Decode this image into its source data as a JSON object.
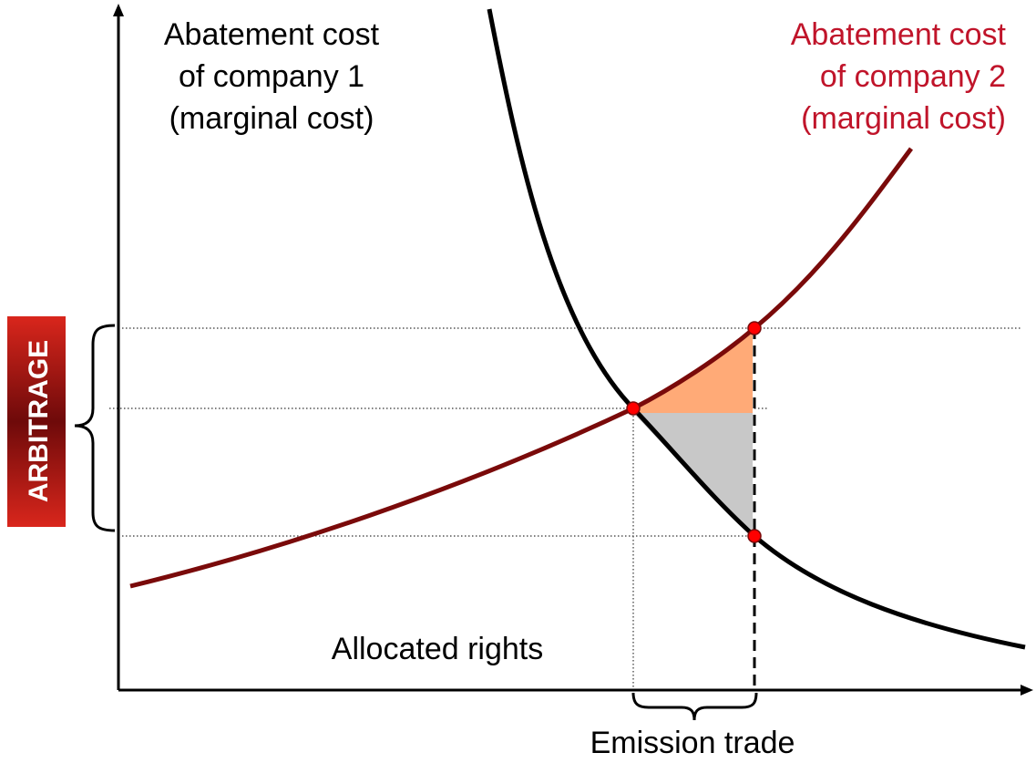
{
  "company1_label": {
    "lines": [
      "Abatement cost",
      "of company 1",
      "(marginal cost)"
    ]
  },
  "company2_label": {
    "lines": [
      "Abatement cost",
      "of company 2",
      "(marginal cost)"
    ]
  },
  "arbitrage_label": "ARBITRAGE",
  "allocated_rights_label": "Allocated rights",
  "emission_trade_label": "Emission trade"
}
